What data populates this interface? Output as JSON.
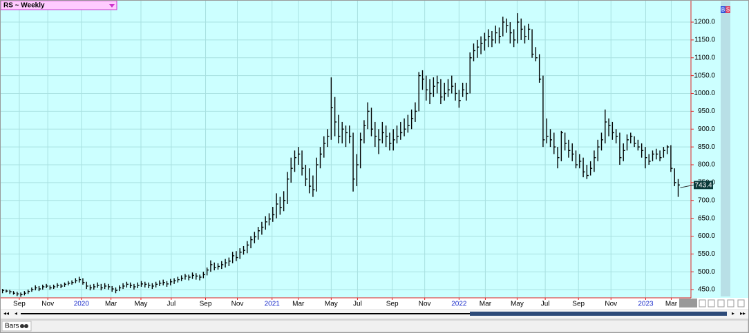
{
  "header": {
    "title": "RS ~ Weekly",
    "buttons": [
      "B",
      "S"
    ]
  },
  "footer": {
    "mode": "Bars"
  },
  "chart_data": {
    "type": "hlc",
    "color": "#000000",
    "grid": true,
    "xlim": [
      -0.5,
      188.5
    ],
    "ylim": [
      427,
      1260
    ],
    "yticks": [
      {
        "value": 450,
        "label": "450.0"
      },
      {
        "value": 500,
        "label": "500.0"
      },
      {
        "value": 550,
        "label": "550.0"
      },
      {
        "value": 600,
        "label": "600.0"
      },
      {
        "value": 650,
        "label": "650.0"
      },
      {
        "value": 700,
        "label": "700.0"
      },
      {
        "value": 750,
        "label": "750.0"
      },
      {
        "value": 800,
        "label": "800.0"
      },
      {
        "value": 850,
        "label": "850.0"
      },
      {
        "value": 900,
        "label": "900.0"
      },
      {
        "value": 950,
        "label": "950.0"
      },
      {
        "value": 1000,
        "label": "1000.0"
      },
      {
        "value": 1050,
        "label": "1050.0"
      },
      {
        "value": 1100,
        "label": "1100.0"
      },
      {
        "value": 1150,
        "label": "1150.0"
      },
      {
        "value": 1200,
        "label": "1200.0"
      }
    ],
    "xticks": [
      {
        "value": 4.6,
        "label": "Sep"
      },
      {
        "value": 12.4,
        "label": "Nov"
      },
      {
        "value": 21.6,
        "label": "2020"
      },
      {
        "value": 29.7,
        "label": "Mar"
      },
      {
        "value": 37.9,
        "label": "May"
      },
      {
        "value": 46.2,
        "label": "Jul"
      },
      {
        "value": 55.6,
        "label": "Sep"
      },
      {
        "value": 64.3,
        "label": "Nov"
      },
      {
        "value": 73.8,
        "label": "2021"
      },
      {
        "value": 81,
        "label": "Mar"
      },
      {
        "value": 90,
        "label": "May"
      },
      {
        "value": 97.2,
        "label": "Jul"
      },
      {
        "value": 106.7,
        "label": "Sep"
      },
      {
        "value": 115.6,
        "label": "Nov"
      },
      {
        "value": 125,
        "label": "2022"
      },
      {
        "value": 132.2,
        "label": "Mar"
      },
      {
        "value": 140.9,
        "label": "May"
      },
      {
        "value": 148.6,
        "label": "Jul"
      },
      {
        "value": 157.7,
        "label": "Sep"
      },
      {
        "value": 166.6,
        "label": "Nov"
      },
      {
        "value": 176.1,
        "label": "2023"
      },
      {
        "value": 183.1,
        "label": "Mar"
      }
    ],
    "bars": [
      [
        452,
        440,
        448
      ],
      [
        450,
        442,
        446
      ],
      [
        449,
        438,
        444
      ],
      [
        446,
        436,
        440
      ],
      [
        444,
        432,
        438
      ],
      [
        442,
        430,
        436
      ],
      [
        446,
        434,
        440
      ],
      [
        450,
        438,
        445
      ],
      [
        456,
        444,
        450
      ],
      [
        462,
        448,
        455
      ],
      [
        460,
        446,
        452
      ],
      [
        464,
        450,
        458
      ],
      [
        466,
        454,
        460
      ],
      [
        462,
        450,
        455
      ],
      [
        464,
        452,
        458
      ],
      [
        468,
        455,
        462
      ],
      [
        466,
        454,
        460
      ],
      [
        470,
        458,
        465
      ],
      [
        474,
        462,
        468
      ],
      [
        476,
        464,
        470
      ],
      [
        482,
        468,
        475
      ],
      [
        486,
        470,
        478
      ],
      [
        482,
        464,
        470
      ],
      [
        472,
        452,
        460
      ],
      [
        464,
        448,
        455
      ],
      [
        466,
        450,
        458
      ],
      [
        470,
        455,
        462
      ],
      [
        466,
        448,
        455
      ],
      [
        468,
        452,
        460
      ],
      [
        466,
        450,
        458
      ],
      [
        460,
        444,
        452
      ],
      [
        456,
        440,
        448
      ],
      [
        462,
        446,
        455
      ],
      [
        468,
        452,
        460
      ],
      [
        472,
        456,
        465
      ],
      [
        470,
        454,
        462
      ],
      [
        466,
        450,
        458
      ],
      [
        470,
        454,
        462
      ],
      [
        474,
        458,
        466
      ],
      [
        472,
        456,
        465
      ],
      [
        470,
        454,
        462
      ],
      [
        468,
        452,
        460
      ],
      [
        472,
        456,
        465
      ],
      [
        476,
        460,
        468
      ],
      [
        478,
        462,
        470
      ],
      [
        474,
        458,
        466
      ],
      [
        480,
        462,
        472
      ],
      [
        482,
        466,
        475
      ],
      [
        486,
        470,
        478
      ],
      [
        490,
        474,
        482
      ],
      [
        494,
        478,
        488
      ],
      [
        492,
        476,
        485
      ],
      [
        498,
        480,
        490
      ],
      [
        496,
        478,
        488
      ],
      [
        492,
        476,
        485
      ],
      [
        500,
        482,
        492
      ],
      [
        512,
        490,
        505
      ],
      [
        532,
        500,
        520
      ],
      [
        526,
        504,
        512
      ],
      [
        524,
        506,
        515
      ],
      [
        530,
        508,
        520
      ],
      [
        536,
        512,
        525
      ],
      [
        540,
        516,
        530
      ],
      [
        556,
        524,
        545
      ],
      [
        558,
        530,
        540
      ],
      [
        566,
        536,
        555
      ],
      [
        572,
        548,
        560
      ],
      [
        586,
        552,
        575
      ],
      [
        600,
        566,
        590
      ],
      [
        612,
        580,
        598
      ],
      [
        626,
        590,
        615
      ],
      [
        640,
        604,
        625
      ],
      [
        656,
        618,
        640
      ],
      [
        664,
        630,
        648
      ],
      [
        682,
        640,
        660
      ],
      [
        720,
        650,
        690
      ],
      [
        710,
        660,
        680
      ],
      [
        726,
        670,
        700
      ],
      [
        780,
        690,
        760
      ],
      [
        820,
        750,
        790
      ],
      [
        840,
        780,
        820
      ],
      [
        850,
        800,
        830
      ],
      [
        840,
        770,
        790
      ],
      [
        800,
        740,
        760
      ],
      [
        790,
        720,
        740
      ],
      [
        770,
        710,
        730
      ],
      [
        820,
        725,
        800
      ],
      [
        850,
        790,
        830
      ],
      [
        880,
        820,
        860
      ],
      [
        900,
        850,
        880
      ],
      [
        1045,
        870,
        960
      ],
      [
        990,
        880,
        920
      ],
      [
        940,
        860,
        880
      ],
      [
        920,
        860,
        900
      ],
      [
        910,
        850,
        890
      ],
      [
        910,
        860,
        880
      ],
      [
        890,
        725,
        760
      ],
      [
        830,
        740,
        800
      ],
      [
        890,
        790,
        870
      ],
      [
        925,
        860,
        910
      ],
      [
        975,
        900,
        950
      ],
      [
        960,
        880,
        900
      ],
      [
        920,
        850,
        880
      ],
      [
        900,
        830,
        870
      ],
      [
        920,
        860,
        890
      ],
      [
        910,
        850,
        880
      ],
      [
        890,
        840,
        860
      ],
      [
        900,
        840,
        870
      ],
      [
        910,
        860,
        880
      ],
      [
        920,
        870,
        890
      ],
      [
        930,
        880,
        900
      ],
      [
        940,
        890,
        910
      ],
      [
        955,
        900,
        930
      ],
      [
        975,
        920,
        950
      ],
      [
        1060,
        950,
        1050
      ],
      [
        1065,
        1010,
        1040
      ],
      [
        1050,
        980,
        1010
      ],
      [
        1040,
        970,
        1000
      ],
      [
        1045,
        990,
        1020
      ],
      [
        1050,
        1000,
        1030
      ],
      [
        1040,
        970,
        990
      ],
      [
        1030,
        980,
        1000
      ],
      [
        1040,
        990,
        1010
      ],
      [
        1050,
        1000,
        1020
      ],
      [
        1030,
        980,
        1000
      ],
      [
        1010,
        960,
        980
      ],
      [
        1030,
        990,
        1010
      ],
      [
        1030,
        980,
        1000
      ],
      [
        1115,
        1000,
        1100
      ],
      [
        1140,
        1090,
        1120
      ],
      [
        1150,
        1100,
        1130
      ],
      [
        1160,
        1110,
        1140
      ],
      [
        1170,
        1120,
        1150
      ],
      [
        1180,
        1130,
        1160
      ],
      [
        1175,
        1130,
        1150
      ],
      [
        1190,
        1140,
        1170
      ],
      [
        1185,
        1140,
        1160
      ],
      [
        1215,
        1160,
        1200
      ],
      [
        1210,
        1170,
        1190
      ],
      [
        1200,
        1140,
        1170
      ],
      [
        1180,
        1130,
        1150
      ],
      [
        1225,
        1140,
        1200
      ],
      [
        1210,
        1150,
        1180
      ],
      [
        1190,
        1140,
        1160
      ],
      [
        1195,
        1150,
        1180
      ],
      [
        1180,
        1100,
        1110
      ],
      [
        1130,
        1090,
        1100
      ],
      [
        1110,
        1030,
        1040
      ],
      [
        1050,
        850,
        870
      ],
      [
        930,
        860,
        880
      ],
      [
        900,
        850,
        870
      ],
      [
        890,
        830,
        850
      ],
      [
        850,
        790,
        820
      ],
      [
        895,
        810,
        890
      ],
      [
        890,
        840,
        860
      ],
      [
        870,
        820,
        840
      ],
      [
        860,
        810,
        830
      ],
      [
        840,
        790,
        800
      ],
      [
        830,
        790,
        810
      ],
      [
        820,
        765,
        780
      ],
      [
        800,
        760,
        770
      ],
      [
        810,
        770,
        790
      ],
      [
        840,
        780,
        820
      ],
      [
        870,
        810,
        850
      ],
      [
        890,
        840,
        870
      ],
      [
        955,
        860,
        920
      ],
      [
        930,
        880,
        910
      ],
      [
        920,
        870,
        890
      ],
      [
        900,
        860,
        880
      ],
      [
        890,
        800,
        820
      ],
      [
        860,
        810,
        840
      ],
      [
        885,
        840,
        870
      ],
      [
        890,
        860,
        880
      ],
      [
        880,
        850,
        860
      ],
      [
        870,
        840,
        850
      ],
      [
        860,
        820,
        840
      ],
      [
        850,
        790,
        820
      ],
      [
        830,
        800,
        810
      ],
      [
        840,
        810,
        830
      ],
      [
        845,
        815,
        830
      ],
      [
        840,
        810,
        820
      ],
      [
        850,
        820,
        840
      ],
      [
        855,
        830,
        850
      ],
      [
        855,
        780,
        790
      ],
      [
        790,
        740,
        750
      ],
      [
        760,
        710,
        743.4
      ]
    ]
  }
}
